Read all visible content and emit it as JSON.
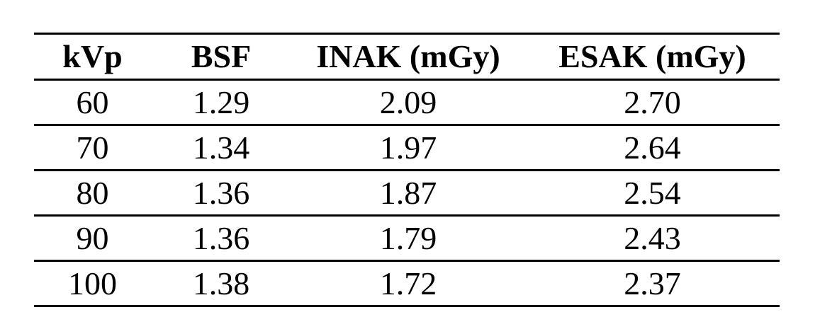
{
  "page": {
    "background_color": "#ffffff",
    "rule_color": "#000000",
    "text_color": "#000000"
  },
  "table": {
    "columns": [
      {
        "key": "kvp",
        "label": "kVp"
      },
      {
        "key": "bsf",
        "label": "BSF"
      },
      {
        "key": "inak",
        "label": "INAK (mGy)"
      },
      {
        "key": "esak",
        "label": "ESAK (mGy)"
      }
    ],
    "rows": [
      {
        "kvp": "60",
        "bsf": "1.29",
        "inak": "2.09",
        "esak": "2.70"
      },
      {
        "kvp": "70",
        "bsf": "1.34",
        "inak": "1.97",
        "esak": "2.64"
      },
      {
        "kvp": "80",
        "bsf": "1.36",
        "inak": "1.87",
        "esak": "2.54"
      },
      {
        "kvp": "90",
        "bsf": "1.36",
        "inak": "1.79",
        "esak": "2.43"
      },
      {
        "kvp": "100",
        "bsf": "1.38",
        "inak": "1.72",
        "esak": "2.37"
      }
    ]
  }
}
